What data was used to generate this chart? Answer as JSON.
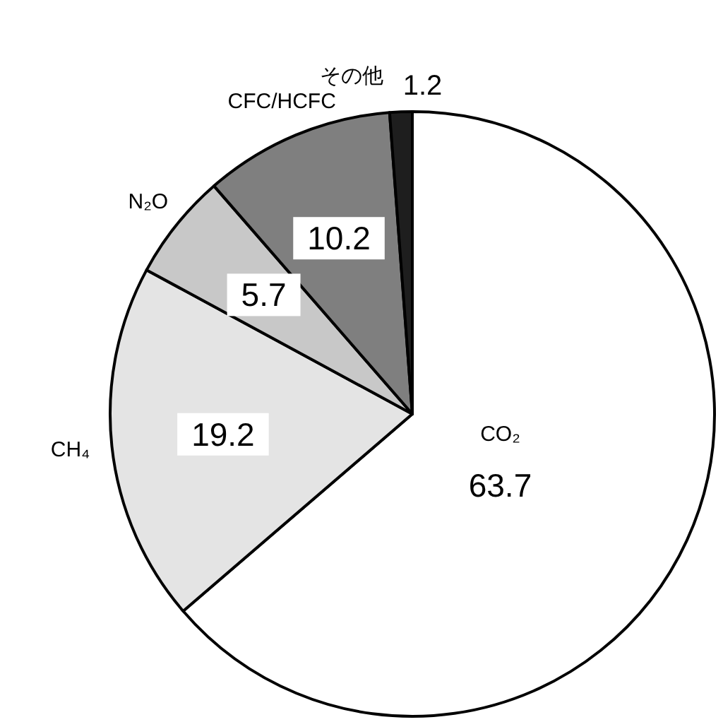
{
  "chart_data": {
    "type": "pie",
    "categories": [
      "CO₂",
      "CH₄",
      "N₂O",
      "CFC/HCFC",
      "その他"
    ],
    "values": [
      63.7,
      19.2,
      5.7,
      10.2,
      1.2
    ],
    "colors": [
      "#ffffff",
      "#e4e4e4",
      "#c8c8c8",
      "#7f7f7f",
      "#1e1e1e"
    ],
    "data_labels": true
  }
}
